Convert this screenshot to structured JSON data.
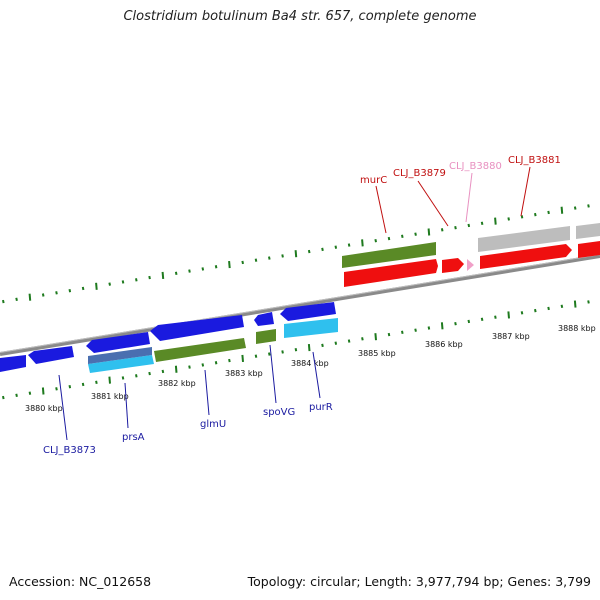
{
  "title": "Clostridium botulinum Ba4 str. 657, complete genome",
  "footer": {
    "accession": "Accession: NC_012658",
    "summary": "Topology: circular; Length: 3,977,794 bp; Genes: 3,799"
  },
  "colors": {
    "blue": "#1a1adf",
    "cyan": "#2fc0ee",
    "green": "#5a8a26",
    "red": "#ef0f0f",
    "gray": "#bdbdbd",
    "pink": "#f0a0c8",
    "tick_green": "#1e7a1e",
    "label_blue": "#1a1aa0",
    "label_red": "#c01010",
    "label_pink": "#e890c0"
  },
  "kbp_labels": [
    "3880 kbp",
    "3881 kbp",
    "3882 kbp",
    "3883 kbp",
    "3884 kbp",
    "3885 kbp",
    "3886 kbp",
    "3887 kbp",
    "3888 kbp"
  ],
  "gene_labels": {
    "clj_b3873": "CLJ_B3873",
    "prsA": "prsA",
    "glmU": "glmU",
    "spoVG": "spoVG",
    "purR": "purR",
    "murC": "murC",
    "clj_b3879": "CLJ_B3879",
    "clj_b3880": "CLJ_B3880",
    "clj_b3881": "CLJ_B3881"
  }
}
